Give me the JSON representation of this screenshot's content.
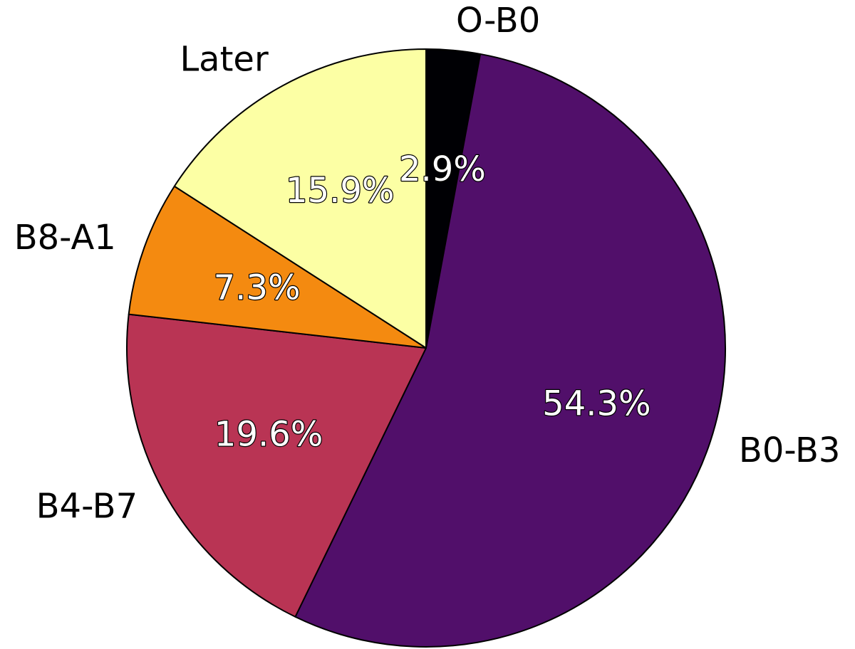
{
  "chart_data": {
    "type": "pie",
    "start_angle_deg": 90,
    "direction": "clockwise",
    "slices": [
      {
        "label": "O-B0",
        "value": 2.9,
        "pct_label": "2.9%",
        "color": "#000004"
      },
      {
        "label": "B0-B3",
        "value": 54.3,
        "pct_label": "54.3%",
        "color": "#510f6a"
      },
      {
        "label": "B4-B7",
        "value": 19.6,
        "pct_label": "19.6%",
        "color": "#b93454"
      },
      {
        "label": "B8-A1",
        "value": 7.3,
        "pct_label": "7.3%",
        "color": "#f48a10"
      },
      {
        "label": "Later",
        "value": 15.9,
        "pct_label": "15.9%",
        "color": "#fcffa4"
      }
    ]
  }
}
